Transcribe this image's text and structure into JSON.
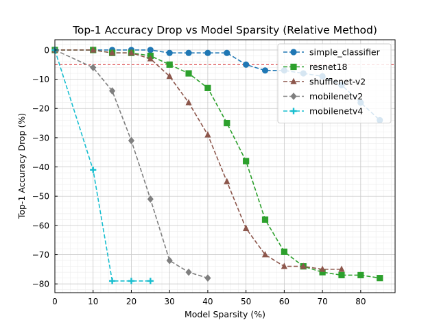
{
  "chart_data": {
    "type": "line",
    "title": "Top-1 Accuracy Drop vs Model Sparsity (Relative Method)",
    "xlabel": "Model Sparsity (%)",
    "ylabel": "Top-1 Accuracy Drop (%)",
    "xlim": [
      0,
      89
    ],
    "ylim": [
      -83,
      3.5
    ],
    "xticks": [
      0,
      10,
      20,
      30,
      40,
      50,
      60,
      70,
      80
    ],
    "yticks": [
      0,
      -10,
      -20,
      -30,
      -40,
      -50,
      -60,
      -70,
      -80
    ],
    "grid": true,
    "legend_position": "top-right",
    "reference_line": {
      "y": -5,
      "color": "#d62728",
      "style": "dashed"
    },
    "series": [
      {
        "name": "simple_classifier",
        "color": "#1f77b4",
        "marker": "circle",
        "x": [
          0,
          10,
          15,
          20,
          25,
          30,
          35,
          40,
          45,
          50,
          55,
          60,
          65,
          70,
          75,
          80,
          85
        ],
        "y": [
          0,
          0,
          0,
          0,
          0,
          -1,
          -1,
          -1,
          -1,
          -5,
          -7,
          -7,
          -8,
          -9,
          -12,
          -18,
          -24
        ]
      },
      {
        "name": "resnet18",
        "color": "#2ca02c",
        "marker": "square",
        "x": [
          0,
          10,
          15,
          20,
          25,
          30,
          35,
          40,
          45,
          50,
          55,
          60,
          65,
          70,
          75,
          80,
          85
        ],
        "y": [
          0,
          0,
          -1,
          -1,
          -2,
          -5,
          -8,
          -13,
          -25,
          -38,
          -58,
          -69,
          -74,
          -76,
          -77,
          -77,
          -78
        ]
      },
      {
        "name": "shufflenet-v2",
        "color": "#8c564b",
        "marker": "triangle",
        "x": [
          0,
          10,
          15,
          20,
          25,
          30,
          35,
          40,
          45,
          50,
          55,
          60,
          65,
          70,
          75
        ],
        "y": [
          0,
          0,
          -1,
          -1,
          -3,
          -9,
          -18,
          -29,
          -45,
          -61,
          -70,
          -74,
          -74,
          -75,
          -75
        ]
      },
      {
        "name": "mobilenetv2",
        "color": "#7f7f7f",
        "marker": "diamond",
        "x": [
          0,
          10,
          15,
          20,
          25,
          30,
          35,
          40
        ],
        "y": [
          0,
          -6,
          -14,
          -31,
          -51,
          -72,
          -76,
          -78
        ]
      },
      {
        "name": "mobilenetv4",
        "color": "#17becf",
        "marker": "plus",
        "x": [
          0,
          10,
          15,
          20,
          25
        ],
        "y": [
          0,
          -41,
          -79,
          -79,
          -79
        ]
      }
    ]
  }
}
